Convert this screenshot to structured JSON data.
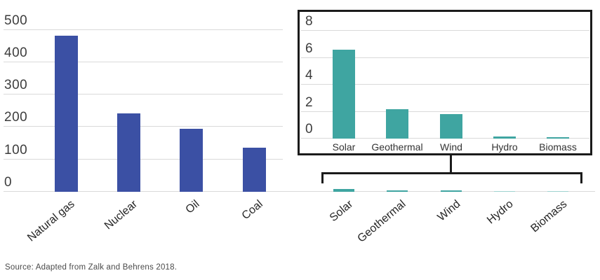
{
  "figure": {
    "source_note": "Source: Adapted from Zalk and Behrens 2018."
  },
  "colors": {
    "fossil_nuclear_bar": "#3b50a4",
    "renewable_bar": "#3fa5a1",
    "renewable_bar_faint": "#9ed2cf",
    "gridline": "#dadada",
    "tick_text": "#3d3d3d",
    "category_text": "#262626",
    "frame": "#1b1b1b",
    "background": "#ffffff"
  },
  "chart_data": [
    {
      "id": "main-bar-chart",
      "type": "bar",
      "title": "",
      "xlabel": "",
      "ylabel": "",
      "categories": [
        "Natural gas",
        "Nuclear",
        "Oil",
        "Coal",
        "Solar",
        "Geothermal",
        "Wind",
        "Hydro",
        "Biomass"
      ],
      "values": [
        482,
        241,
        195,
        135,
        6.6,
        2.2,
        1.8,
        0.15,
        0.08
      ],
      "color_key": [
        "fossil_nuclear",
        "fossil_nuclear",
        "fossil_nuclear",
        "fossil_nuclear",
        "renewable",
        "renewable",
        "renewable",
        "renewable",
        "renewable"
      ],
      "yticks": [
        0,
        100,
        200,
        300,
        400,
        500
      ],
      "ylim": [
        0,
        500
      ],
      "grid": true,
      "legend": "none",
      "x_tick_rotation_deg": -40
    },
    {
      "id": "inset-renewables-chart",
      "type": "bar",
      "title": "",
      "xlabel": "",
      "ylabel": "",
      "categories": [
        "Solar",
        "Geothermal",
        "Wind",
        "Hydro",
        "Biomass"
      ],
      "values": [
        6.6,
        2.2,
        1.8,
        0.15,
        0.08
      ],
      "color_key": [
        "renewable",
        "renewable",
        "renewable",
        "renewable",
        "renewable"
      ],
      "yticks": [
        0,
        2,
        4,
        6,
        8
      ],
      "ylim": [
        0,
        8
      ],
      "grid": true,
      "legend": "none",
      "x_tick_rotation_deg": 0
    }
  ]
}
